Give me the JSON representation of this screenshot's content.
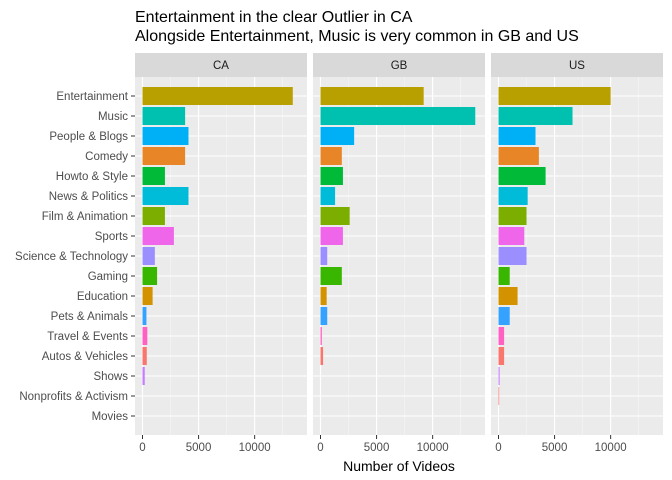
{
  "chart_data": {
    "type": "bar",
    "orientation": "horizontal",
    "title_lines": [
      "Entertainment in the clear Outlier in CA",
      "Alongside Entertainment, Music is very common in GB and US"
    ],
    "xlabel": "Number of Videos",
    "ylabel": "",
    "xlim": [
      0,
      14000
    ],
    "x_ticks": [
      0,
      5000,
      10000
    ],
    "x_tick_labels": [
      "0",
      "5000",
      "10000"
    ],
    "grid": true,
    "legend": "none",
    "categories": [
      "Entertainment",
      "Music",
      "People & Blogs",
      "Comedy",
      "Howto & Style",
      "News & Politics",
      "Film & Animation",
      "Sports",
      "Science & Technology",
      "Gaming",
      "Education",
      "Pets & Animals",
      "Travel & Events",
      "Autos & Vehicles",
      "Shows",
      "Nonprofits & Activism",
      "Movies"
    ],
    "category_colors": [
      "#B8A000",
      "#00C0AF",
      "#00B0F6",
      "#E88526",
      "#00BA38",
      "#00BCD8",
      "#7CAE00",
      "#F066EA",
      "#9B8EFF",
      "#39B600",
      "#D39200",
      "#35A2FF",
      "#FF61C3",
      "#F8766D",
      "#C77CFF",
      "#F8766D",
      "#E76BF3"
    ],
    "facets": [
      {
        "name": "CA",
        "values": [
          13400,
          3800,
          4100,
          3800,
          2000,
          4100,
          2000,
          2800,
          1100,
          1300,
          900,
          350,
          430,
          380,
          200,
          0,
          0
        ]
      },
      {
        "name": "GB",
        "values": [
          9200,
          13800,
          3000,
          1900,
          2000,
          1300,
          2600,
          2000,
          600,
          1900,
          550,
          600,
          120,
          230,
          0,
          0,
          0
        ]
      },
      {
        "name": "US",
        "values": [
          10000,
          6600,
          3300,
          3600,
          4200,
          2600,
          2500,
          2300,
          2500,
          1000,
          1700,
          1000,
          500,
          500,
          100,
          60,
          0
        ]
      }
    ]
  }
}
